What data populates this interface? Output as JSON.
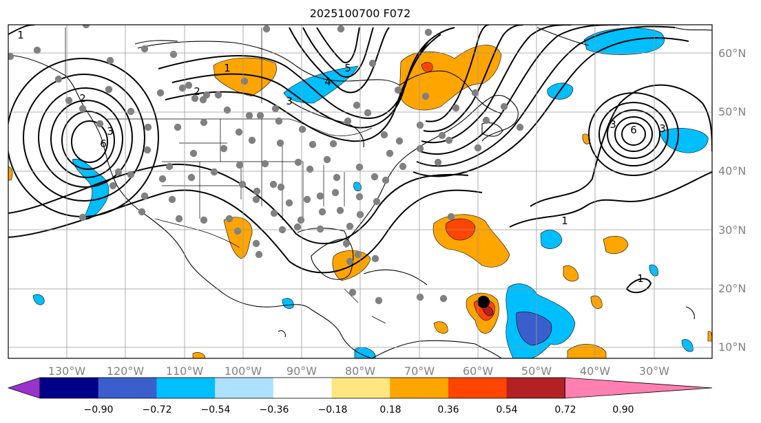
{
  "title": "2025100700 F072",
  "map": {
    "lon_labels": [
      "130°W",
      "120°W",
      "110°W",
      "100°W",
      "90°W",
      "80°W",
      "70°W",
      "60°W",
      "50°W",
      "40°W",
      "30°W"
    ],
    "lat_labels": [
      "60°N",
      "50°N",
      "40°N",
      "30°N",
      "20°N",
      "10°N"
    ],
    "contour_labels": [
      "1",
      "2",
      "3",
      "4",
      "5",
      "6",
      "1",
      "2",
      "3",
      "1",
      "3",
      "6",
      "3",
      "1"
    ],
    "colors": {
      "contour": "#000000",
      "station_dot": "#808080",
      "storm_marker": "#000000",
      "gridline": "#999999",
      "axis_label": "#808080"
    }
  },
  "colorbar": {
    "tick_labels": [
      "−0.90",
      "−0.72",
      "−0.54",
      "−0.36",
      "−0.18",
      "0.18",
      "0.36",
      "0.54",
      "0.72",
      "0.90"
    ],
    "bins": [
      {
        "color": "#9933cc"
      },
      {
        "color": "#000088"
      },
      {
        "color": "#3a5fcd"
      },
      {
        "color": "#00bfff"
      },
      {
        "color": "#aee0ff"
      },
      {
        "color": "#ffffff"
      },
      {
        "color": "#ffe680"
      },
      {
        "color": "#ffa500"
      },
      {
        "color": "#ff4500"
      },
      {
        "color": "#b22222"
      },
      {
        "color": "#ff80b0"
      }
    ]
  }
}
